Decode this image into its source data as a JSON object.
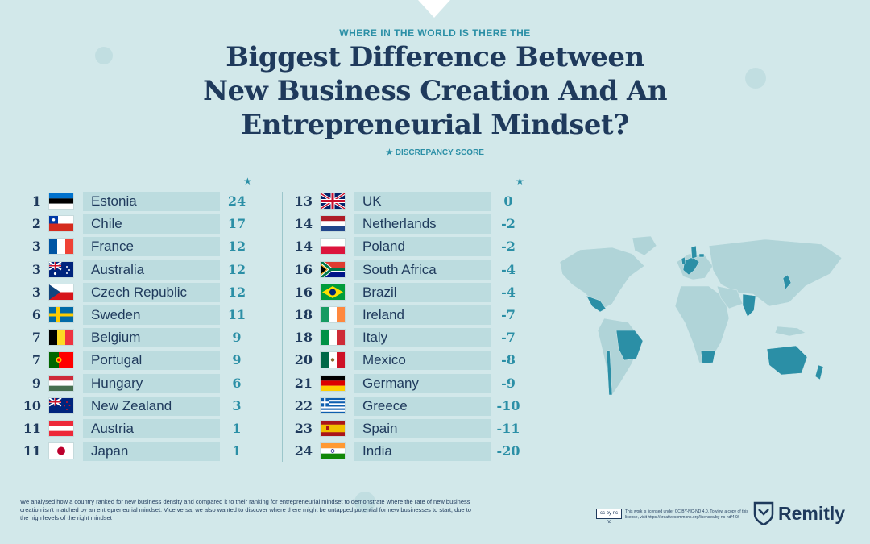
{
  "header": {
    "subtitle": "WHERE IN THE WORLD IS THERE THE",
    "title_lines": [
      "Biggest Difference Between",
      "New Business Creation And An",
      "Entrepreneurial Mindset?"
    ],
    "legend": "★ DISCREPANCY SCORE",
    "star": "★"
  },
  "left_column": [
    {
      "rank": "1",
      "country": "Estonia",
      "score": "24",
      "flag": "estonia-flag"
    },
    {
      "rank": "2",
      "country": "Chile",
      "score": "17",
      "flag": "chile-flag"
    },
    {
      "rank": "3",
      "country": "France",
      "score": "12",
      "flag": "france-flag"
    },
    {
      "rank": "3",
      "country": "Australia",
      "score": "12",
      "flag": "australia-flag"
    },
    {
      "rank": "3",
      "country": "Czech Republic",
      "score": "12",
      "flag": "czech-flag"
    },
    {
      "rank": "6",
      "country": "Sweden",
      "score": "11",
      "flag": "sweden-flag"
    },
    {
      "rank": "7",
      "country": "Belgium",
      "score": "9",
      "flag": "belgium-flag"
    },
    {
      "rank": "7",
      "country": "Portugal",
      "score": "9",
      "flag": "portugal-flag"
    },
    {
      "rank": "9",
      "country": "Hungary",
      "score": "6",
      "flag": "hungary-flag"
    },
    {
      "rank": "10",
      "country": "New Zealand",
      "score": "3",
      "flag": "new-zealand-flag"
    },
    {
      "rank": "11",
      "country": "Austria",
      "score": "1",
      "flag": "austria-flag"
    },
    {
      "rank": "11",
      "country": "Japan",
      "score": "1",
      "flag": "japan-flag"
    }
  ],
  "right_column": [
    {
      "rank": "13",
      "country": "UK",
      "score": "0",
      "flag": "uk-flag"
    },
    {
      "rank": "14",
      "country": "Netherlands",
      "score": "-2",
      "flag": "netherlands-flag"
    },
    {
      "rank": "14",
      "country": "Poland",
      "score": "-2",
      "flag": "poland-flag"
    },
    {
      "rank": "16",
      "country": "South Africa",
      "score": "-4",
      "flag": "south-africa-flag"
    },
    {
      "rank": "16",
      "country": "Brazil",
      "score": "-4",
      "flag": "brazil-flag"
    },
    {
      "rank": "18",
      "country": "Ireland",
      "score": "-7",
      "flag": "ireland-flag"
    },
    {
      "rank": "18",
      "country": "Italy",
      "score": "-7",
      "flag": "italy-flag"
    },
    {
      "rank": "20",
      "country": "Mexico",
      "score": "-8",
      "flag": "mexico-flag"
    },
    {
      "rank": "21",
      "country": "Germany",
      "score": "-9",
      "flag": "germany-flag"
    },
    {
      "rank": "22",
      "country": "Greece",
      "score": "-10",
      "flag": "greece-flag"
    },
    {
      "rank": "23",
      "country": "Spain",
      "score": "-11",
      "flag": "spain-flag"
    },
    {
      "rank": "24",
      "country": "India",
      "score": "-20",
      "flag": "india-flag"
    }
  ],
  "footer": {
    "note": "We analysed how a country ranked for new business density and compared it  to their ranking for entrepreneurial mindset to demonstrate where the rate of  new business creation isn't matched by an entrepreneurial mindset. Vice versa,  we also wanted to discover where there might be untapped potential for new businesses to start, due to the high levels of the right mindset",
    "license": "This work is licensed under CC BY-NC-ND 4.0. To view a copy of this license, visit https://creativecommons.org/licenses/by-nc-nd/4.0/",
    "cc_badge": "cc by nc nd",
    "logo_text": "Remitly"
  },
  "colors": {
    "background": "#d2e8ea",
    "navy": "#1f3a5c",
    "teal": "#2b8fa6",
    "row_fill": "#bcdcdf",
    "highlight_country": "#2b8fa6",
    "land": "#b0d4d8"
  }
}
